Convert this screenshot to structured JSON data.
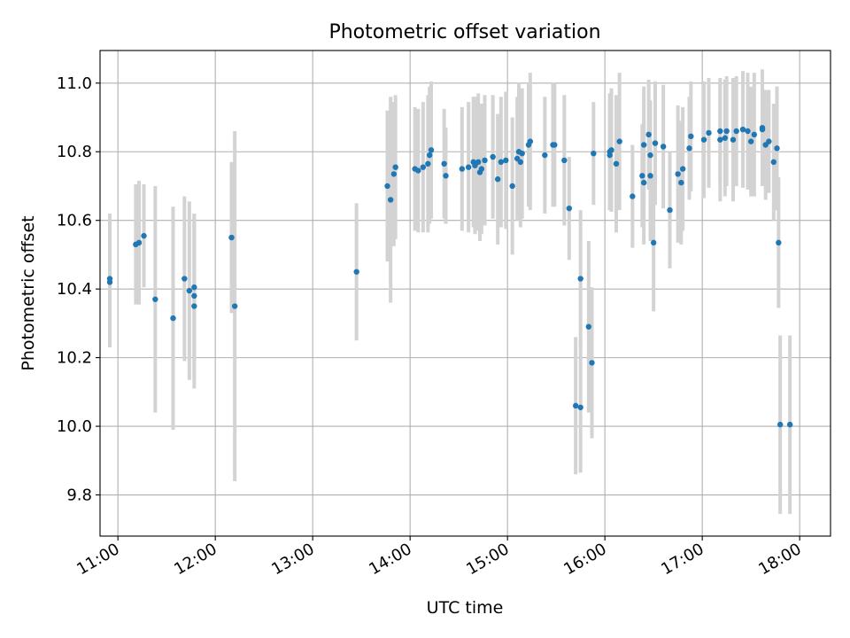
{
  "chart_data": {
    "type": "scatter",
    "title": "Photometric offset variation",
    "xlabel": "UTC time",
    "ylabel": "Photometric offset",
    "x_axis_type": "time",
    "xlim": [
      "10:49",
      "18:19"
    ],
    "ylim": [
      9.68,
      11.095
    ],
    "x_ticks": [
      "11:00",
      "12:00",
      "13:00",
      "14:00",
      "15:00",
      "16:00",
      "17:00",
      "18:00"
    ],
    "y_ticks": [
      "9.8",
      "10.0",
      "10.2",
      "10.4",
      "10.6",
      "10.8",
      "11.0"
    ],
    "grid": true,
    "point_color": "#1f77b4",
    "error_bar_color": "#d3d3d3",
    "series": [
      {
        "x": [
          "10:55",
          "10:55",
          "11:11",
          "11:13",
          "11:16",
          "11:23",
          "11:34",
          "11:41",
          "11:44",
          "11:47",
          "11:47",
          "11:47",
          "12:10",
          "12:12",
          "13:27",
          "13:46",
          "13:48",
          "13:50",
          "13:51",
          "14:03",
          "14:05",
          "14:08",
          "14:11",
          "14:12",
          "14:13",
          "14:21",
          "14:22",
          "14:32",
          "14:36",
          "14:39",
          "14:40",
          "14:42",
          "14:43",
          "14:44",
          "14:46",
          "14:51",
          "14:54",
          "14:56",
          "14:59",
          "15:03",
          "15:06",
          "15:07",
          "15:08",
          "15:09",
          "15:13",
          "15:14",
          "15:23",
          "15:28",
          "15:29",
          "15:35",
          "15:38",
          "15:42",
          "15:45",
          "15:45",
          "15:50",
          "15:52",
          "15:53",
          "16:03",
          "16:03",
          "16:04",
          "16:07",
          "16:09",
          "16:17",
          "16:23",
          "16:24",
          "16:24",
          "16:27",
          "16:28",
          "16:28",
          "16:30",
          "16:31",
          "16:36",
          "16:40",
          "16:45",
          "16:47",
          "16:48",
          "16:52",
          "16:53",
          "17:01",
          "17:04",
          "17:11",
          "17:11",
          "17:14",
          "17:15",
          "17:19",
          "17:21",
          "17:25",
          "17:28",
          "17:30",
          "17:32",
          "17:37",
          "17:37",
          "17:39",
          "17:41",
          "17:44",
          "17:46",
          "17:47",
          "17:48",
          "17:54"
        ],
        "y": [
          10.43,
          10.42,
          10.53,
          10.535,
          10.555,
          10.37,
          10.315,
          10.43,
          10.395,
          10.35,
          10.38,
          10.405,
          10.55,
          10.35,
          10.45,
          10.7,
          10.66,
          10.735,
          10.755,
          10.75,
          10.745,
          10.755,
          10.765,
          10.79,
          10.805,
          10.765,
          10.73,
          10.75,
          10.755,
          10.77,
          10.76,
          10.77,
          10.74,
          10.75,
          10.775,
          10.785,
          10.72,
          10.77,
          10.775,
          10.7,
          10.78,
          10.8,
          10.77,
          10.795,
          10.82,
          10.83,
          10.79,
          10.82,
          10.82,
          10.775,
          10.635,
          10.06,
          10.055,
          10.43,
          10.29,
          10.185,
          10.795,
          10.79,
          10.8,
          10.805,
          10.765,
          10.83,
          10.67,
          10.73,
          10.71,
          10.82,
          10.85,
          10.79,
          10.73,
          10.535,
          10.825,
          10.815,
          10.63,
          10.735,
          10.71,
          10.75,
          10.81,
          10.845,
          10.835,
          10.855,
          10.835,
          10.86,
          10.84,
          10.86,
          10.835,
          10.86,
          10.865,
          10.86,
          10.83,
          10.85,
          10.865,
          10.87,
          10.82,
          10.83,
          10.77,
          10.81,
          10.535,
          10.005,
          10.005
        ],
        "err": [
          0.19,
          0.19,
          0.175,
          0.18,
          0.15,
          0.33,
          0.325,
          0.24,
          0.26,
          0.24,
          0.24,
          0.21,
          0.22,
          0.51,
          0.2,
          0.22,
          0.3,
          0.21,
          0.21,
          0.18,
          0.18,
          0.19,
          0.2,
          0.2,
          0.2,
          0.16,
          0.14,
          0.18,
          0.19,
          0.19,
          0.2,
          0.2,
          0.2,
          0.19,
          0.19,
          0.18,
          0.19,
          0.19,
          0.2,
          0.2,
          0.18,
          0.2,
          0.19,
          0.19,
          0.18,
          0.2,
          0.17,
          0.18,
          0.18,
          0.19,
          0.15,
          0.2,
          0.19,
          0.2,
          0.25,
          0.22,
          0.15,
          0.16,
          0.17,
          0.18,
          0.2,
          0.2,
          0.15,
          0.15,
          0.18,
          0.17,
          0.16,
          0.16,
          0.19,
          0.2,
          0.18,
          0.18,
          0.17,
          0.2,
          0.18,
          0.18,
          0.15,
          0.16,
          0.17,
          0.16,
          0.18,
          0.15,
          0.17,
          0.16,
          0.18,
          0.16,
          0.17,
          0.17,
          0.16,
          0.18,
          0.16,
          0.17,
          0.16,
          0.15,
          0.17,
          0.18,
          0.19,
          0.26,
          0.26
        ]
      }
    ]
  }
}
